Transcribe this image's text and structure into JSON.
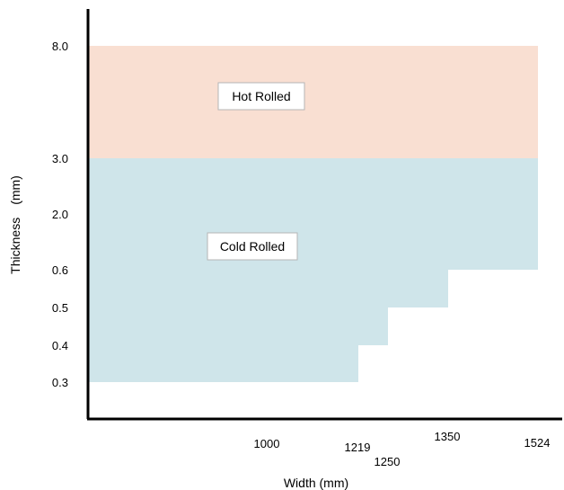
{
  "chart_data": {
    "type": "area",
    "title": "",
    "xlabel": "Width (mm)",
    "ylabel": "Thickness　(mm)",
    "x_ticks": [
      {
        "value": 1000,
        "label": "1000"
      },
      {
        "value": 1219,
        "label": "1219"
      },
      {
        "value": 1250,
        "label": "1250"
      },
      {
        "value": 1350,
        "label": "1350"
      },
      {
        "value": 1524,
        "label": "1524"
      }
    ],
    "y_ticks": [
      {
        "value": 0.3,
        "label": "0.3"
      },
      {
        "value": 0.4,
        "label": "0.4"
      },
      {
        "value": 0.5,
        "label": "0.5"
      },
      {
        "value": 0.6,
        "label": "0.6"
      },
      {
        "value": 2.0,
        "label": "2.0"
      },
      {
        "value": 3.0,
        "label": "3.0"
      },
      {
        "value": 8.0,
        "label": "8.0"
      }
    ],
    "regions": [
      {
        "name": "Hot Rolled",
        "color": "#f9dfd2",
        "thickness_range": [
          3.0,
          8.0
        ],
        "max_width": 1524
      },
      {
        "name": "Cold Rolled",
        "color": "#cfe5ea",
        "steps": [
          {
            "thickness_range": [
              0.3,
              0.4
            ],
            "max_width": 1219
          },
          {
            "thickness_range": [
              0.4,
              0.5
            ],
            "max_width": 1250
          },
          {
            "thickness_range": [
              0.5,
              0.6
            ],
            "max_width": 1350
          },
          {
            "thickness_range": [
              0.6,
              3.0
            ],
            "max_width": 1524
          }
        ]
      }
    ],
    "grid": false,
    "legend": "none"
  }
}
